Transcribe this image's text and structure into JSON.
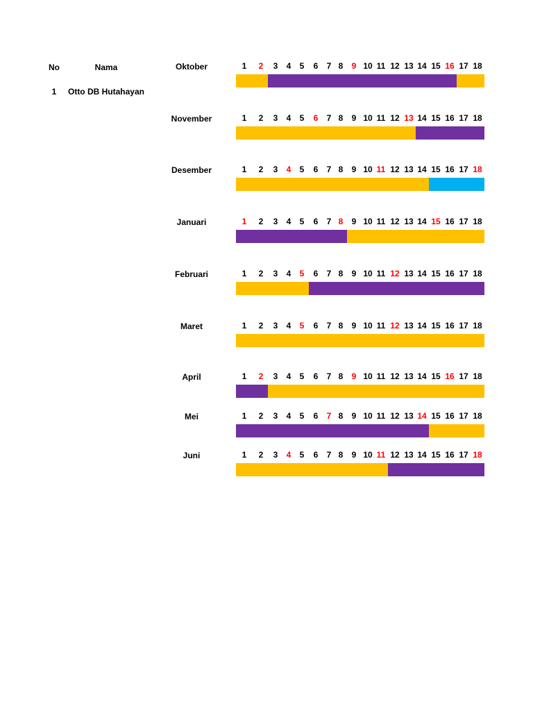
{
  "header": {
    "no": "No",
    "nama": "Nama"
  },
  "row": {
    "no": "1",
    "nama": "Otto DB Hutahayan"
  },
  "day_color": "#000000",
  "red_color": "#ff0000",
  "months": [
    {
      "name": "Oktober",
      "days": [
        1,
        2,
        3,
        4,
        5,
        6,
        7,
        8,
        9,
        10,
        11,
        12,
        13,
        14,
        15,
        16,
        17,
        18
      ],
      "red": [
        2,
        9,
        16
      ],
      "segments": [
        {
          "from": 1,
          "to": 2,
          "color": "#ffc000"
        },
        {
          "from": 3,
          "to": 16,
          "color": "#7030a0"
        },
        {
          "from": 17,
          "to": 18,
          "color": "#ffc000"
        }
      ]
    },
    {
      "name": "November",
      "days": [
        1,
        2,
        3,
        4,
        5,
        6,
        7,
        8,
        9,
        10,
        11,
        12,
        13,
        14,
        15,
        16,
        17,
        18
      ],
      "red": [
        6,
        13
      ],
      "segments": [
        {
          "from": 1,
          "to": 13,
          "color": "#ffc000"
        },
        {
          "from": 14,
          "to": 18,
          "color": "#7030a0"
        }
      ]
    },
    {
      "name": "Desember",
      "days": [
        1,
        2,
        3,
        4,
        5,
        6,
        7,
        8,
        9,
        10,
        11,
        12,
        13,
        14,
        15,
        16,
        17,
        18
      ],
      "red": [
        4,
        11,
        18
      ],
      "segments": [
        {
          "from": 1,
          "to": 14,
          "color": "#ffc000"
        },
        {
          "from": 15,
          "to": 18,
          "color": "#00b0f0"
        }
      ]
    },
    {
      "name": "Januari",
      "days": [
        1,
        2,
        3,
        4,
        5,
        6,
        7,
        8,
        9,
        10,
        11,
        12,
        13,
        14,
        15,
        16,
        17,
        18
      ],
      "red": [
        1,
        8,
        15
      ],
      "segments": [
        {
          "from": 1,
          "to": 8,
          "color": "#7030a0"
        },
        {
          "from": 9,
          "to": 18,
          "color": "#ffc000"
        }
      ]
    },
    {
      "name": "Februari",
      "days": [
        1,
        2,
        3,
        4,
        5,
        6,
        7,
        8,
        9,
        10,
        11,
        12,
        13,
        14,
        15,
        16,
        17,
        18
      ],
      "red": [
        5,
        12
      ],
      "segments": [
        {
          "from": 1,
          "to": 5,
          "color": "#ffc000"
        },
        {
          "from": 6,
          "to": 18,
          "color": "#7030a0"
        }
      ]
    },
    {
      "name": "Maret",
      "days": [
        1,
        2,
        3,
        4,
        5,
        6,
        7,
        8,
        9,
        10,
        11,
        12,
        13,
        14,
        15,
        16,
        17,
        18
      ],
      "red": [
        5,
        12
      ],
      "segments": [
        {
          "from": 1,
          "to": 18,
          "color": "#ffc000"
        }
      ]
    },
    {
      "name": "April",
      "days": [
        1,
        2,
        3,
        4,
        5,
        6,
        7,
        8,
        9,
        10,
        11,
        12,
        13,
        14,
        15,
        16,
        17,
        18
      ],
      "red": [
        2,
        9,
        16
      ],
      "segments": [
        {
          "from": 1,
          "to": 2,
          "color": "#7030a0"
        },
        {
          "from": 3,
          "to": 18,
          "color": "#ffc000"
        }
      ]
    },
    {
      "name": "Mei",
      "days": [
        1,
        2,
        3,
        4,
        5,
        6,
        7,
        8,
        9,
        10,
        11,
        12,
        13,
        14,
        15,
        16,
        17,
        18
      ],
      "red": [
        7,
        14
      ],
      "segments": [
        {
          "from": 1,
          "to": 14,
          "color": "#7030a0"
        },
        {
          "from": 15,
          "to": 18,
          "color": "#ffc000"
        }
      ]
    },
    {
      "name": "Juni",
      "days": [
        1,
        2,
        3,
        4,
        5,
        6,
        7,
        8,
        9,
        10,
        11,
        12,
        13,
        14,
        15,
        16,
        17,
        18
      ],
      "red": [
        4,
        11,
        18
      ],
      "segments": [
        {
          "from": 1,
          "to": 11,
          "color": "#ffc000"
        },
        {
          "from": 12,
          "to": 18,
          "color": "#7030a0"
        }
      ]
    }
  ]
}
